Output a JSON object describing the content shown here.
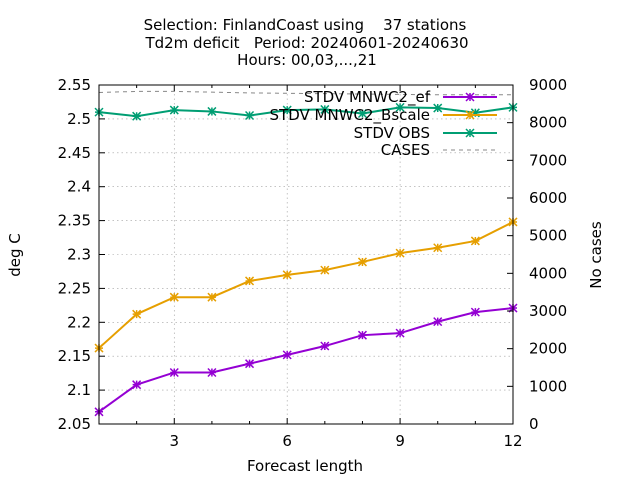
{
  "chart_data": {
    "type": "line",
    "title": [
      "Selection: FinlandCoast using    37 stations",
      "Td2m deficit   Period: 20240601-20240630",
      "Hours: 00,03,...,21"
    ],
    "xlabel": "Forecast length",
    "ylabel": "deg C",
    "y2label": "No cases",
    "xlim": [
      1,
      12
    ],
    "ylim": [
      2.05,
      2.55
    ],
    "y2lim": [
      0,
      9000
    ],
    "xticks": [
      3,
      6,
      9,
      12
    ],
    "yticks": [
      2.05,
      2.1,
      2.15,
      2.2,
      2.25,
      2.3,
      2.35,
      2.4,
      2.45,
      2.5,
      2.55
    ],
    "y2ticks": [
      0,
      1000,
      2000,
      3000,
      4000,
      5000,
      6000,
      7000,
      8000,
      9000
    ],
    "x": [
      1,
      2,
      3,
      4,
      5,
      6,
      7,
      8,
      9,
      10,
      11,
      12
    ],
    "legend_position": "top-right",
    "series": [
      {
        "name": "STDV MNWC2_ef",
        "color": "#9400d3",
        "axis": "y",
        "marker": true,
        "values": [
          2.068,
          2.108,
          2.126,
          2.126,
          2.139,
          2.152,
          2.165,
          2.181,
          2.184,
          2.201,
          2.215,
          2.221
        ]
      },
      {
        "name": "STDV MNWC2_Bscale",
        "color": "#e69f00",
        "axis": "y",
        "marker": true,
        "values": [
          2.162,
          2.212,
          2.237,
          2.237,
          2.261,
          2.27,
          2.277,
          2.289,
          2.302,
          2.31,
          2.32,
          2.348
        ]
      },
      {
        "name": "STDV OBS",
        "color": "#009e73",
        "axis": "y",
        "marker": true,
        "values": [
          2.51,
          2.504,
          2.513,
          2.511,
          2.505,
          2.513,
          2.514,
          2.508,
          2.517,
          2.516,
          2.509,
          2.517
        ]
      },
      {
        "name": "CASES",
        "color": "#888888",
        "axis": "y2",
        "marker": false,
        "dashed": true,
        "values": [
          8800,
          8830,
          8830,
          8810,
          8790,
          8780,
          8770,
          8760,
          8750,
          8740,
          8740,
          8740
        ]
      }
    ]
  }
}
